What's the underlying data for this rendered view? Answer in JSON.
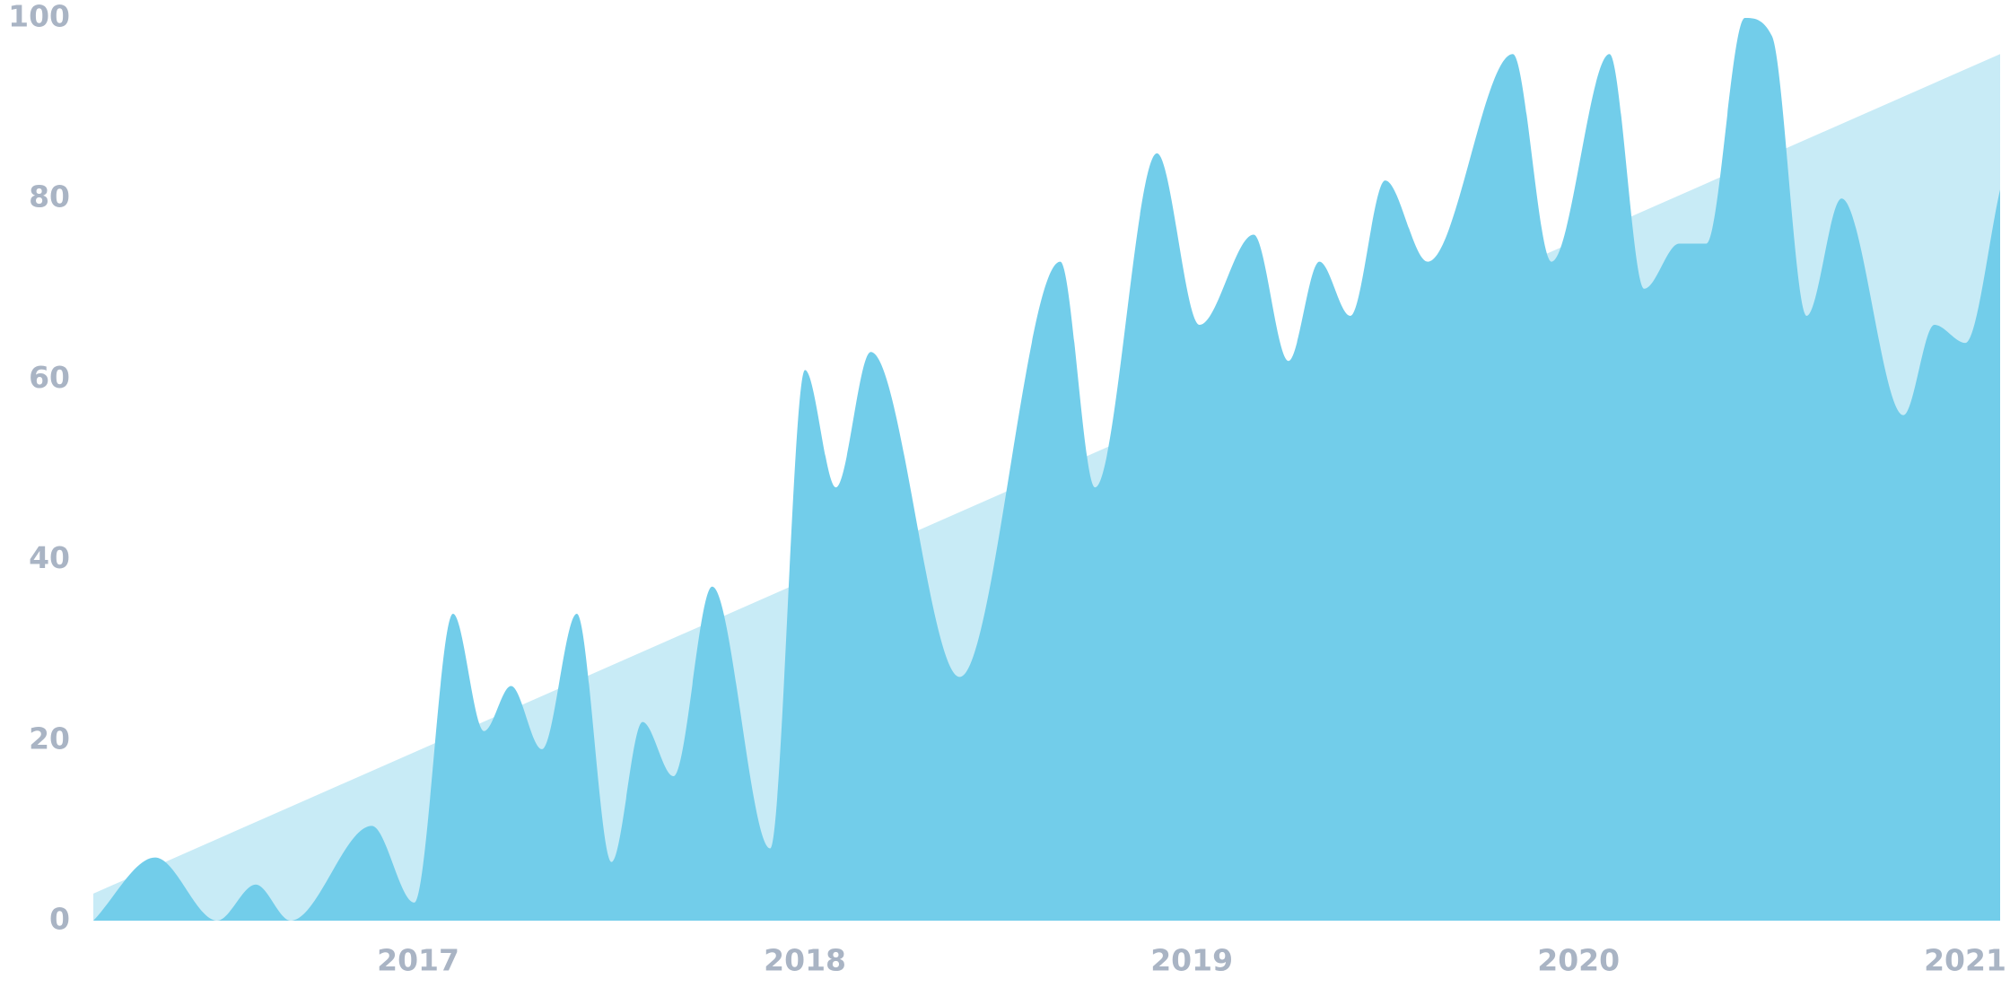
{
  "chart_data": {
    "type": "area",
    "xlim": [
      2016.16,
      2021.09
    ],
    "xticks": [
      2017,
      2018,
      2019,
      2020,
      2021
    ],
    "ylim": [
      0,
      100
    ],
    "yticks": [
      0,
      20,
      40,
      60,
      80,
      100
    ],
    "series": [
      {
        "color": "#c8ebf6",
        "x": [
          2016.16,
          2021.09
        ],
        "values": [
          3,
          96
        ]
      },
      {
        "color": "#72cdea",
        "x": [
          2016.16,
          2016.32,
          2016.48,
          2016.58,
          2016.67,
          2016.88,
          2016.99,
          2017.09,
          2017.17,
          2017.24,
          2017.32,
          2017.41,
          2017.5,
          2017.58,
          2017.66,
          2017.76,
          2017.91,
          2018.0,
          2018.08,
          2018.17,
          2018.4,
          2018.66,
          2018.75,
          2018.91,
          2019.02,
          2019.16,
          2019.25,
          2019.33,
          2019.41,
          2019.5,
          2019.61,
          2019.83,
          2019.93,
          2020.08,
          2020.17,
          2020.26,
          2020.33,
          2020.43,
          2020.5,
          2020.59,
          2020.68,
          2020.84,
          2020.92,
          2021.0,
          2021.09
        ],
        "values": [
          0,
          7,
          0,
          4,
          0,
          10.5,
          2,
          34,
          21,
          26,
          19,
          34,
          6.5,
          22,
          16,
          37,
          8,
          61,
          48,
          63,
          27,
          73,
          48,
          85,
          66,
          76,
          62,
          73,
          67,
          82,
          73,
          96,
          73,
          96,
          70,
          75,
          75,
          100,
          98,
          67,
          80,
          56,
          66,
          64,
          81
        ]
      }
    ]
  }
}
